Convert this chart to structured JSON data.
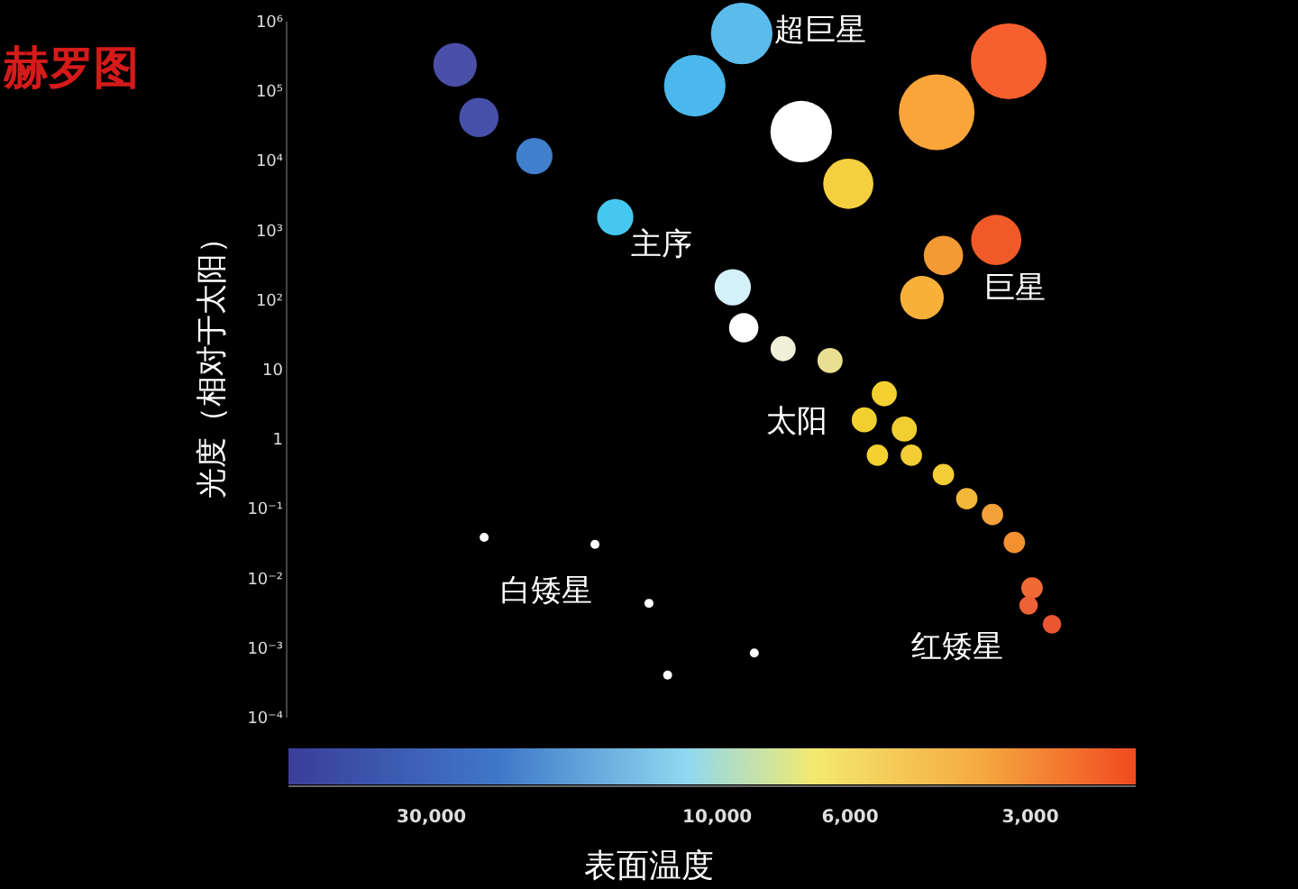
{
  "chart_data": {
    "type": "bubble",
    "title": "赫罗图",
    "xlabel": "表面温度",
    "ylabel": "光度（相对于太阳）",
    "log": "xy",
    "grid": false,
    "xlim": [
      52000,
      2000
    ],
    "xticks": [
      {
        "value": 30000,
        "label": "30,000"
      },
      {
        "value": 10000,
        "label": "10,000"
      },
      {
        "value": 6000,
        "label": "6,000"
      },
      {
        "value": 3000,
        "label": "3,000"
      }
    ],
    "ylim": [
      0.0001,
      1000000
    ],
    "yticks": [
      {
        "value": 0.0001,
        "label": "10⁻⁴"
      },
      {
        "value": 0.001,
        "label": "10⁻³"
      },
      {
        "value": 0.01,
        "label": "10⁻²"
      },
      {
        "value": 0.1,
        "label": "10⁻¹"
      },
      1,
      10,
      {
        "value": 100,
        "label": "10²"
      },
      {
        "value": 1000,
        "label": "10³"
      },
      {
        "value": 10000,
        "label": "10⁴"
      },
      {
        "value": 100000,
        "label": "10⁵"
      },
      {
        "value": 1000000,
        "label": "10⁶"
      }
    ],
    "x": [
      27400,
      25000,
      20200,
      14800,
      9100,
      10900,
      7240,
      6040,
      4300,
      3260,
      4190,
      3420,
      4550,
      9420,
      9030,
      7760,
      6480,
      5260,
      5680,
      4870,
      5400,
      4740,
      4190,
      3830,
      3470,
      3190,
      2980,
      3020,
      2760,
      24500,
      16000,
      13000,
      12100,
      8670
    ],
    "values": [
      240000,
      42000,
      11700,
      1550,
      676000,
      120000,
      26300,
      4680,
      50000,
      270000,
      437,
      730,
      108,
      153,
      40,
      20,
      13.5,
      4.5,
      1.9,
      1.4,
      0.59,
      0.59,
      0.31,
      0.14,
      0.083,
      0.033,
      0.0073,
      0.0041,
      0.0022,
      0.039,
      0.031,
      0.0044,
      0.00041,
      0.00085
    ],
    "sizes": [
      0.33,
      0.27,
      0.23,
      0.23,
      0.66,
      0.66,
      0.66,
      0.44,
      1,
      1,
      0.27,
      0.44,
      0.33,
      0.23,
      0.15,
      0.11,
      0.11,
      0.11,
      0.11,
      0.11,
      0.08,
      0.08,
      0.08,
      0.08,
      0.08,
      0.08,
      0.08,
      0.06,
      0.06,
      0.014,
      0.014,
      0.014,
      0.014,
      0.014
    ],
    "colors": [
      "#4a4fa8",
      "#4650a8",
      "#3f7fcc",
      "#45c8f0",
      "#5bbcec",
      "#4ab8ec",
      "#ffffff",
      "#f4d040",
      "#f9a53a",
      "#f5602e",
      "#f39a34",
      "#f05a28",
      "#f7b03a",
      "#d4f0f8",
      "#ffffff",
      "#f0f0d8",
      "#e8e090",
      "#f4d030",
      "#f2cf30",
      "#f2cf30",
      "#f4d030",
      "#f3cd35",
      "#f3cd35",
      "#f3b73a",
      "#f3a23a",
      "#f3902f",
      "#ef6a35",
      "#ee6035",
      "#ea5632",
      "#ffffff",
      "#ffffff",
      "#ffffff",
      "#ffffff",
      "#ffffff"
    ],
    "annotations": [
      "超巨星",
      "主序",
      "巨星",
      "太阳",
      "白矮星",
      "红矮星"
    ]
  }
}
